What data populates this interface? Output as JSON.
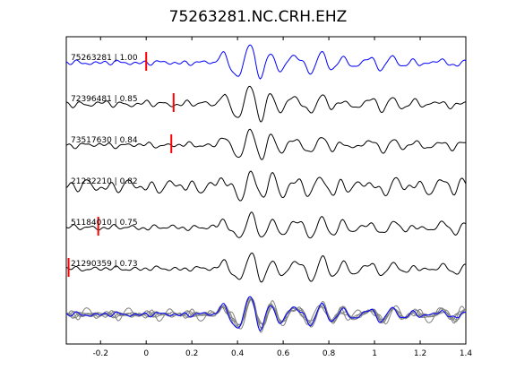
{
  "chart_data": {
    "type": "line",
    "title": "75263281.NC.CRH.EHZ",
    "xlabel": "",
    "ylabel": "",
    "xlim": [
      -0.35,
      1.4
    ],
    "x_ticks": [
      -0.2,
      0,
      0.2,
      0.4,
      0.6,
      0.8,
      1,
      1.2,
      1.4
    ],
    "x_tick_labels": [
      "-0.2",
      "0",
      "0.2",
      "0.4",
      "0.6",
      "0.8",
      "1",
      "1.2",
      "1.4"
    ],
    "y_ticks": "none",
    "grid": false,
    "legend": "none",
    "traces": [
      {
        "label": "75263281 | 1.00",
        "color": "#0000ff",
        "pick_time": 0.0,
        "onset": 0.28,
        "quiet_amp": 0.1,
        "seed": 1
      },
      {
        "label": "72396481 | 0.85",
        "color": "#000000",
        "pick_time": 0.12,
        "onset": 0.3,
        "quiet_amp": 0.16,
        "seed": 2
      },
      {
        "label": "73517630 | 0.84",
        "color": "#000000",
        "pick_time": 0.11,
        "onset": 0.3,
        "quiet_amp": 0.12,
        "seed": 3
      },
      {
        "label": "21232210 | 0.82",
        "color": "#000000",
        "pick_time": null,
        "onset": -0.25,
        "quiet_amp": 0.35,
        "seed": 4
      },
      {
        "label": "51184010 | 0.75",
        "color": "#000000",
        "pick_time": -0.21,
        "onset": 0.25,
        "quiet_amp": 0.12,
        "seed": 5
      },
      {
        "label": "21290359 | 0.73",
        "color": "#000000",
        "pick_time": -0.34,
        "onset": 0.18,
        "quiet_amp": 0.1,
        "seed": 6
      }
    ],
    "stack": {
      "background_color": "#808080",
      "foreground_color": "#0000ff"
    },
    "pick_color": "#ff0000"
  }
}
